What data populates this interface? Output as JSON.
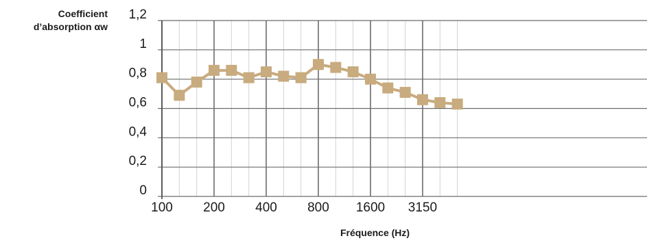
{
  "chart_data": {
    "type": "line",
    "ylabel_line1": "Coefficient",
    "ylabel_line2": "d’absorption αw",
    "xlabel": "Fréquence (Hz)",
    "x_ticks": [
      "100",
      "200",
      "400",
      "800",
      "1600",
      "3150"
    ],
    "y_ticks": [
      "0",
      "0,2",
      "0,4",
      "0,6",
      "0,8",
      "1",
      "1,2"
    ],
    "ylim": [
      0,
      1.2
    ],
    "grid": true,
    "series_color": "#c8ab7e",
    "series": [
      {
        "x": [
          100,
          125,
          160,
          200,
          250,
          315,
          400,
          500,
          630,
          800,
          1000,
          1250,
          1600,
          2000,
          2500,
          3150,
          4000,
          5000
        ],
        "values": [
          0.81,
          0.69,
          0.78,
          0.86,
          0.86,
          0.81,
          0.85,
          0.82,
          0.81,
          0.9,
          0.88,
          0.85,
          0.8,
          0.74,
          0.71,
          0.66,
          0.64,
          0.63
        ]
      }
    ]
  }
}
